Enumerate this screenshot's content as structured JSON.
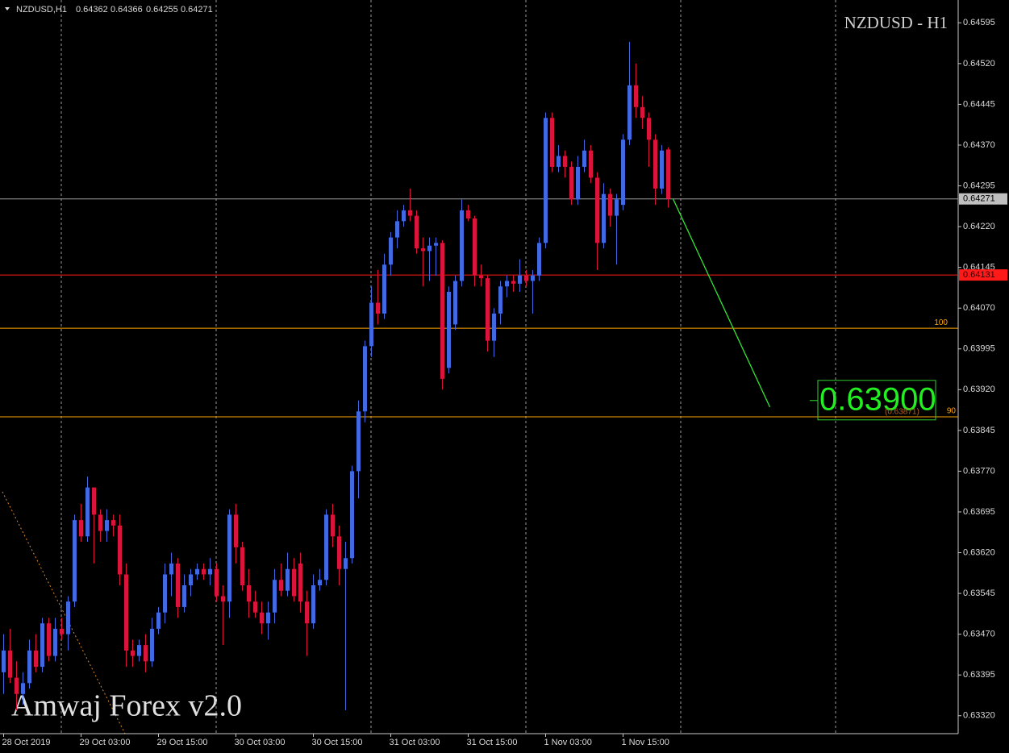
{
  "chart_data": {
    "type": "candlestick",
    "title": "NZDUSD - H1",
    "symbol_label": "NZDUSD,H1",
    "ohlc_readout": [
      0.64362,
      0.64366,
      0.64255,
      0.64271
    ],
    "watermark": "Amwaj Forex v2.0",
    "bull_color": "#4169e1",
    "bear_color": "#dc143c",
    "categories": [
      "28 Oct 2019",
      null,
      null,
      null,
      null,
      null,
      null,
      null,
      null,
      null,
      null,
      null,
      "29 Oct 03:00",
      null,
      null,
      null,
      null,
      null,
      null,
      null,
      null,
      null,
      null,
      null,
      "29 Oct 15:00",
      null,
      null,
      null,
      null,
      null,
      null,
      null,
      null,
      null,
      null,
      null,
      "30 Oct 03:00",
      null,
      null,
      null,
      null,
      null,
      null,
      null,
      null,
      null,
      null,
      null,
      "30 Oct 15:00",
      null,
      null,
      null,
      null,
      null,
      null,
      null,
      null,
      null,
      null,
      null,
      "31 Oct 03:00",
      null,
      null,
      null,
      null,
      null,
      null,
      null,
      null,
      null,
      null,
      null,
      "31 Oct 15:00",
      null,
      null,
      null,
      null,
      null,
      null,
      null,
      null,
      null,
      null,
      null,
      "1 Nov 03:00",
      null,
      null,
      null,
      null,
      null,
      null,
      null,
      null,
      null,
      null,
      null,
      "1 Nov 15:00",
      null,
      null,
      null,
      null,
      null,
      null,
      null
    ],
    "ohlc": {
      "open": [
        0.634,
        0.6344,
        0.6339,
        0.6336,
        0.6338,
        0.6344,
        0.6341,
        0.6349,
        0.6343,
        0.6348,
        0.6347,
        0.6353,
        0.6368,
        0.6365,
        0.6374,
        0.6369,
        0.6366,
        0.6368,
        0.6367,
        0.6358,
        0.6344,
        0.6343,
        0.6345,
        0.6342,
        0.6348,
        0.6351,
        0.6358,
        0.636,
        0.6352,
        0.6356,
        0.6358,
        0.6359,
        0.6358,
        0.6359,
        0.6354,
        0.6353,
        0.6369,
        0.6363,
        0.6356,
        0.6353,
        0.6351,
        0.6349,
        0.6351,
        0.6357,
        0.6355,
        0.6359,
        0.636,
        0.6353,
        0.6349,
        0.6356,
        0.6357,
        0.6369,
        0.6365,
        0.6359,
        0.6361,
        0.6377,
        0.6388,
        0.64,
        0.6408,
        0.6406,
        0.6415,
        0.642,
        0.6423,
        0.6425,
        0.6424,
        0.6418,
        0.64175,
        0.64185,
        0.6419,
        0.6396,
        0.6404,
        0.6412,
        0.6425,
        0.64235,
        0.6413,
        0.64125,
        0.6401,
        0.6406,
        0.6411,
        0.6412,
        0.64115,
        0.6413,
        0.6412,
        0.6413,
        0.6419,
        0.6442,
        0.6433,
        0.6435,
        0.6433,
        0.6427,
        0.6433,
        0.6436,
        0.6431,
        0.6419,
        0.6428,
        0.6424,
        0.6426,
        0.6438,
        0.6448,
        0.6444,
        0.6442,
        0.6438,
        0.6429,
        0.64362
      ],
      "high": [
        0.6347,
        0.6348,
        0.6342,
        0.634,
        0.6346,
        0.6347,
        0.635,
        0.635,
        0.635,
        0.635,
        0.6354,
        0.6369,
        0.6371,
        0.6376,
        0.6374,
        0.637,
        0.637,
        0.6369,
        0.6369,
        0.636,
        0.6346,
        0.6346,
        0.6347,
        0.635,
        0.6352,
        0.636,
        0.6362,
        0.6361,
        0.6358,
        0.6359,
        0.636,
        0.636,
        0.6361,
        0.636,
        0.6356,
        0.637,
        0.6371,
        0.6364,
        0.6359,
        0.6355,
        0.6353,
        0.6353,
        0.6359,
        0.636,
        0.6362,
        0.6361,
        0.6362,
        0.6355,
        0.6358,
        0.6359,
        0.637,
        0.6371,
        0.6367,
        0.6364,
        0.6378,
        0.639,
        0.6401,
        0.6411,
        0.6414,
        0.6417,
        0.6421,
        0.6425,
        0.6426,
        0.6429,
        0.6425,
        0.642,
        0.642,
        0.642,
        0.64195,
        0.6411,
        0.6413,
        0.6427,
        0.6426,
        0.6424,
        0.6415,
        0.6413,
        0.6407,
        0.6412,
        0.6413,
        0.6413,
        0.6416,
        0.6414,
        0.6414,
        0.642,
        0.6443,
        0.6443,
        0.6437,
        0.6436,
        0.6434,
        0.6435,
        0.6438,
        0.6437,
        0.6432,
        0.643,
        0.6429,
        0.6428,
        0.6439,
        0.6456,
        0.6452,
        0.6446,
        0.6443,
        0.6439,
        0.6437,
        0.64366
      ],
      "low": [
        0.6336,
        0.6338,
        0.6333,
        0.6334,
        0.6337,
        0.634,
        0.634,
        0.6342,
        0.6342,
        0.6346,
        0.6344,
        0.6352,
        0.6364,
        0.6364,
        0.636,
        0.6364,
        0.6364,
        0.6365,
        0.6356,
        0.6341,
        0.6341,
        0.6342,
        0.634,
        0.6341,
        0.6347,
        0.6349,
        0.6354,
        0.635,
        0.6351,
        0.6354,
        0.6357,
        0.6357,
        0.6356,
        0.6353,
        0.6345,
        0.635,
        0.636,
        0.6355,
        0.635,
        0.635,
        0.6347,
        0.6346,
        0.6349,
        0.6354,
        0.6354,
        0.6353,
        0.6351,
        0.6343,
        0.6348,
        0.6355,
        0.6356,
        0.6363,
        0.6356,
        0.6333,
        0.636,
        0.6372,
        0.6386,
        0.6398,
        0.6404,
        0.6405,
        0.6413,
        0.6418,
        0.6422,
        0.6423,
        0.6417,
        0.6411,
        0.6412,
        0.6413,
        0.6392,
        0.6395,
        0.6403,
        0.6411,
        0.6423,
        0.6411,
        0.6411,
        0.6399,
        0.6398,
        0.6404,
        0.6409,
        0.641,
        0.641,
        0.6411,
        0.6406,
        0.6412,
        0.6418,
        0.6432,
        0.6432,
        0.6431,
        0.6426,
        0.6426,
        0.6432,
        0.643,
        0.6414,
        0.6418,
        0.6422,
        0.6415,
        0.6425,
        0.6437,
        0.6442,
        0.644,
        0.6433,
        0.6426,
        0.6428,
        0.64255
      ],
      "close": [
        0.6344,
        0.6339,
        0.6336,
        0.6338,
        0.6344,
        0.6341,
        0.6349,
        0.6343,
        0.6348,
        0.6347,
        0.6353,
        0.6368,
        0.6365,
        0.6374,
        0.6369,
        0.6366,
        0.6368,
        0.6367,
        0.6358,
        0.6344,
        0.6343,
        0.6345,
        0.6342,
        0.6348,
        0.6351,
        0.6358,
        0.636,
        0.6352,
        0.6356,
        0.6358,
        0.6359,
        0.6358,
        0.6359,
        0.6354,
        0.6353,
        0.6369,
        0.6363,
        0.6356,
        0.6353,
        0.6351,
        0.6349,
        0.6351,
        0.6357,
        0.6355,
        0.6359,
        0.6354,
        0.6353,
        0.6349,
        0.6356,
        0.6357,
        0.6369,
        0.6365,
        0.6359,
        0.6361,
        0.6377,
        0.6388,
        0.64,
        0.6408,
        0.6406,
        0.6415,
        0.642,
        0.6423,
        0.6425,
        0.6424,
        0.6418,
        0.64175,
        0.64185,
        0.6419,
        0.6394,
        0.641,
        0.6412,
        0.6425,
        0.64235,
        0.6413,
        0.64125,
        0.6401,
        0.6406,
        0.6411,
        0.6412,
        0.64115,
        0.6413,
        0.6412,
        0.6413,
        0.6419,
        0.6442,
        0.6433,
        0.6435,
        0.6433,
        0.6427,
        0.6433,
        0.6436,
        0.6431,
        0.6419,
        0.6428,
        0.6424,
        0.6427,
        0.6438,
        0.6448,
        0.6444,
        0.6442,
        0.6438,
        0.6429,
        0.6436,
        0.64271
      ]
    },
    "ylim": [
      0.63287,
      0.64637
    ],
    "yticks": [
      0.64595,
      {
        "value": 0.6452,
        "label": "0.64520"
      },
      0.64445,
      {
        "value": 0.6437,
        "label": "0.64370"
      },
      0.64295,
      {
        "value": 0.6422,
        "label": "0.64220"
      },
      0.64145,
      {
        "value": 0.6407,
        "label": "0.64070"
      },
      0.63995,
      {
        "value": 0.6392,
        "label": "0.63920"
      },
      0.63845,
      {
        "value": 0.6377,
        "label": "0.63770"
      },
      0.63695,
      {
        "value": 0.6362,
        "label": "0.63620"
      },
      0.63545,
      {
        "value": 0.6347,
        "label": "0.63470"
      },
      0.63395,
      {
        "value": 0.6332,
        "label": "0.63320"
      }
    ],
    "price_line": 0.64271,
    "alert_line": 0.64131,
    "fib_levels": [
      {
        "label": "100",
        "value": 0.64033
      },
      {
        "label": "90",
        "value": 0.6387
      }
    ],
    "projection_end": 0.63888,
    "target": {
      "value": 0.639,
      "label": "0.63900",
      "sub_label": "(0.63871)"
    }
  }
}
